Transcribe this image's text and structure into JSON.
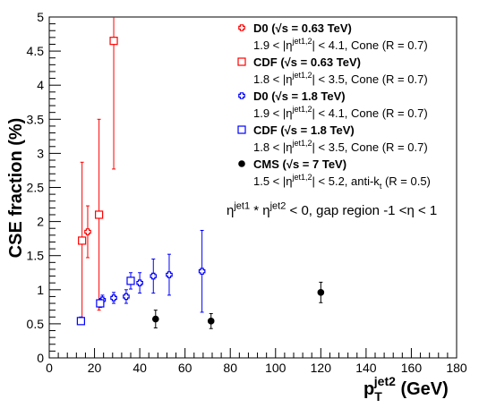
{
  "chart_data": {
    "type": "scatter",
    "xlabel": "p",
    "xlabel_sub": "T",
    "xlabel_sup": "jet2",
    "xlabel_unit": " (GeV)",
    "ylabel": "CSE fraction (%)",
    "xlim": [
      0,
      180
    ],
    "ylim": [
      0,
      5
    ],
    "xticks": [
      "0",
      "20",
      "40",
      "60",
      "80",
      "100",
      "120",
      "140",
      "160",
      "180"
    ],
    "yticks": [
      "0",
      "0.5",
      "1",
      "1.5",
      "2",
      "2.5",
      "3",
      "3.5",
      "4",
      "4.5",
      "5"
    ],
    "grid": false,
    "annotation": "η^{jet1} * η^{jet2} < 0, gap region -1 <η < 1",
    "series": [
      {
        "name": "D0 (√s = 0.63 TeV)",
        "detail": "1.9 < |η^{jet1,2}| < 4.1, Cone (R = 0.7)",
        "color": "#ff0000",
        "marker": "open-cross",
        "points": [
          {
            "x": 17,
            "y": 1.85,
            "err_low": 0.38,
            "err_high": 0.38
          }
        ]
      },
      {
        "name": "CDF (√s = 0.63 TeV)",
        "detail": "1.8 < |η^{jet1,2}| < 3.5, Cone (R = 0.7)",
        "color": "#ff0000",
        "marker": "open-square",
        "points": [
          {
            "x": 14.5,
            "y": 1.72,
            "err_low": 1.15,
            "err_high": 1.15
          },
          {
            "x": 22,
            "y": 2.1,
            "err_low": 1.4,
            "err_high": 1.4
          },
          {
            "x": 28.5,
            "y": 4.65,
            "err_low": 1.88,
            "err_high": 0.5
          }
        ]
      },
      {
        "name": "D0 (√s = 1.8 TeV)",
        "detail": "1.9 < |η^{jet1,2}| < 4.1, Cone (R = 0.7)",
        "color": "#0000ff",
        "marker": "open-cross",
        "points": [
          {
            "x": 14,
            "y": 0.55,
            "err_low": 0.05,
            "err_high": 0.05
          },
          {
            "x": 23.5,
            "y": 0.85,
            "err_low": 0.07,
            "err_high": 0.07
          },
          {
            "x": 28.5,
            "y": 0.88,
            "err_low": 0.08,
            "err_high": 0.08
          },
          {
            "x": 34,
            "y": 0.9,
            "err_low": 0.1,
            "err_high": 0.1
          },
          {
            "x": 40,
            "y": 1.1,
            "err_low": 0.15,
            "err_high": 0.15
          },
          {
            "x": 46,
            "y": 1.2,
            "err_low": 0.25,
            "err_high": 0.25
          },
          {
            "x": 53,
            "y": 1.22,
            "err_low": 0.3,
            "err_high": 0.3
          },
          {
            "x": 67.5,
            "y": 1.27,
            "err_low": 0.6,
            "err_high": 0.6
          }
        ]
      },
      {
        "name": "CDF (√s = 1.8 TeV)",
        "detail": "1.8 < |η^{jet1,2}| < 3.5, Cone (R = 0.7)",
        "color": "#0000ff",
        "marker": "open-square",
        "points": [
          {
            "x": 14,
            "y": 0.54,
            "err_low": 0.04,
            "err_high": 0.04
          },
          {
            "x": 22.5,
            "y": 0.8,
            "err_low": 0.06,
            "err_high": 0.06
          },
          {
            "x": 36,
            "y": 1.13,
            "err_low": 0.12,
            "err_high": 0.12
          }
        ]
      },
      {
        "name": "CMS (√s = 7 TeV)",
        "detail": "1.5 < |η^{jet1,2}| < 5.2, anti-k_{t} (R = 0.5)",
        "color": "#000000",
        "marker": "filled-circle",
        "points": [
          {
            "x": 47,
            "y": 0.57,
            "err_low": 0.13,
            "err_high": 0.13
          },
          {
            "x": 71.5,
            "y": 0.54,
            "err_low": 0.11,
            "err_high": 0.11
          },
          {
            "x": 120,
            "y": 0.96,
            "err_low": 0.15,
            "err_high": 0.15
          }
        ]
      }
    ]
  }
}
